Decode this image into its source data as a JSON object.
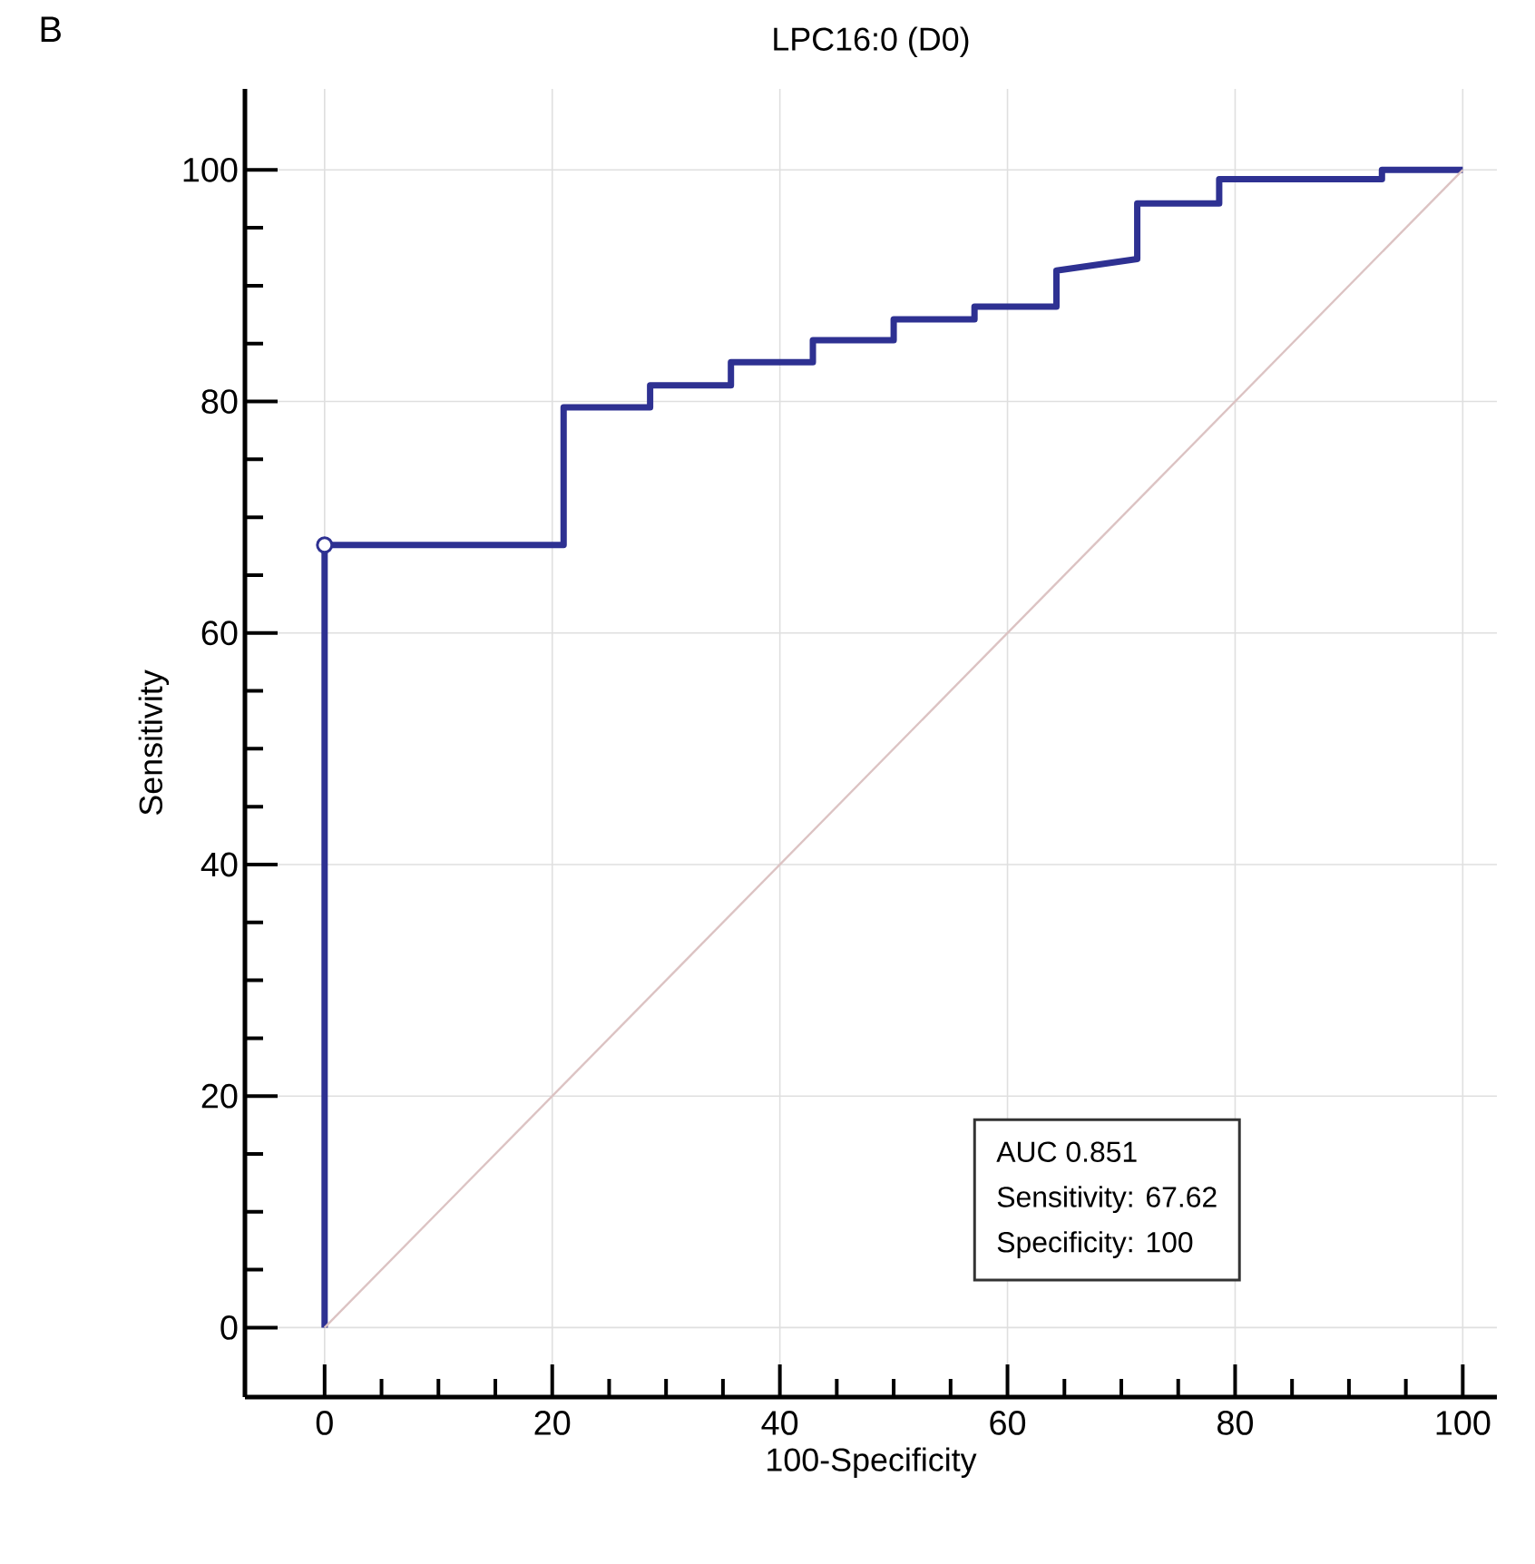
{
  "chart_data": {
    "type": "line",
    "title": "LPC16:0 (D0)",
    "xlabel": "100-Specificity",
    "ylabel": "Sensitivity",
    "xlim": [
      -7,
      103
    ],
    "ylim": [
      -6,
      107
    ],
    "xticks": [
      0,
      20,
      40,
      60,
      80,
      100
    ],
    "yticks": [
      0,
      20,
      40,
      60,
      80,
      100
    ],
    "grid": true,
    "annotations": [
      "B",
      "AUC 0.851",
      "Sensitivity: 67.62",
      "Specificity: 100"
    ],
    "series": [
      {
        "color": "#2e3192",
        "x": [
          0,
          0,
          21,
          21,
          28.6,
          28.6,
          35.7,
          35.7,
          42.9,
          42.9,
          50,
          50,
          57.1,
          57.1,
          64.3,
          64.3,
          71.4,
          71.4,
          78.6,
          78.6,
          92.9,
          92.9,
          100
        ],
        "values": [
          0,
          67.6,
          67.6,
          79.5,
          79.5,
          81.4,
          81.4,
          83.4,
          83.4,
          85.3,
          85.3,
          87.1,
          87.1,
          88.2,
          88.2,
          91.3,
          92.3,
          97.1,
          97.1,
          99.2,
          99.2,
          100,
          100
        ]
      },
      {
        "color": "#dcc3c3",
        "x": [
          0,
          100
        ],
        "values": [
          0,
          100
        ]
      },
      {
        "type": "scatter",
        "color": "#2e3192",
        "marker": "circle",
        "x": [
          0
        ],
        "values": [
          67.6
        ]
      }
    ]
  }
}
